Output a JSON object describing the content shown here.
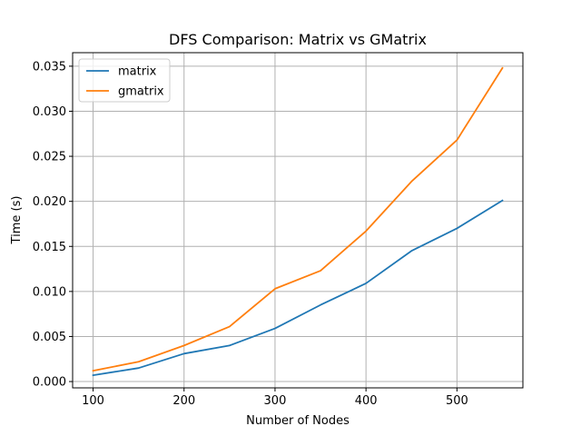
{
  "chart_data": {
    "type": "line",
    "title": "DFS Comparison: Matrix vs GMatrix",
    "xlabel": "Number of Nodes",
    "ylabel": "Time (s)",
    "x": [
      100,
      150,
      200,
      250,
      300,
      350,
      400,
      450,
      500,
      550
    ],
    "xlim": [
      77.5,
      572.5
    ],
    "ylim": [
      -0.0007,
      0.0365
    ],
    "xticks": [
      "100",
      "200",
      "300",
      "400",
      "500"
    ],
    "yticks": [
      "0.000",
      "0.005",
      "0.010",
      "0.015",
      "0.020",
      "0.025",
      "0.030",
      "0.035"
    ],
    "grid": true,
    "legend_position": "top-left",
    "series": [
      {
        "name": "matrix",
        "color": "#1f77b4",
        "values": [
          0.0007,
          0.0015,
          0.0031,
          0.004,
          0.0059,
          0.0085,
          0.0109,
          0.0145,
          0.017,
          0.0201
        ]
      },
      {
        "name": "gmatrix",
        "color": "#ff7f0e",
        "values": [
          0.0012,
          0.0022,
          0.004,
          0.0061,
          0.0103,
          0.0123,
          0.0167,
          0.0222,
          0.0268,
          0.0348
        ]
      }
    ]
  }
}
